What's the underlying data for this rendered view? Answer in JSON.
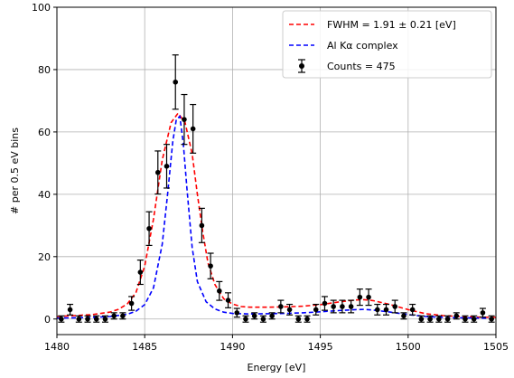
{
  "chart_data": {
    "type": "scatter",
    "xlabel": "Energy [eV]",
    "ylabel": "# per 0.5 eV bins",
    "xlim": [
      1480,
      1505
    ],
    "ylim": [
      -5,
      100
    ],
    "x_ticks": [
      1480,
      1485,
      1490,
      1495,
      1500,
      1505
    ],
    "y_ticks": [
      0,
      20,
      40,
      60,
      80,
      100
    ],
    "grid": true,
    "legend_position": "top-right",
    "legend": [
      {
        "label": "FWHM = 1.91 ± 0.21 [eV]",
        "style": "dashed",
        "color": "#ff0000"
      },
      {
        "label": "Al Kα complex",
        "style": "dashed",
        "color": "#0000ff"
      },
      {
        "label": "Counts = 475",
        "style": "errorbar",
        "color": "#000000"
      }
    ],
    "series": [
      {
        "type": "errorbar",
        "color": "#000000",
        "x": [
          1480.25,
          1480.75,
          1481.25,
          1481.75,
          1482.25,
          1482.75,
          1483.25,
          1483.75,
          1484.25,
          1484.75,
          1485.25,
          1485.75,
          1486.25,
          1486.75,
          1487.25,
          1487.75,
          1488.25,
          1488.75,
          1489.25,
          1489.75,
          1490.25,
          1490.75,
          1491.25,
          1491.75,
          1492.25,
          1492.75,
          1493.25,
          1493.75,
          1494.25,
          1494.75,
          1495.25,
          1495.75,
          1496.25,
          1496.75,
          1497.25,
          1497.75,
          1498.25,
          1498.75,
          1499.25,
          1499.75,
          1500.25,
          1500.75,
          1501.25,
          1501.75,
          1502.25,
          1502.75,
          1503.25,
          1503.75,
          1504.25,
          1504.75
        ],
        "y": [
          0,
          3,
          0,
          0,
          0,
          0,
          1,
          1,
          5,
          15,
          29,
          47,
          49,
          76,
          64,
          61,
          30,
          17,
          9,
          6,
          2,
          0,
          1,
          0,
          1,
          4,
          3,
          0,
          0,
          3,
          5,
          4,
          4,
          4,
          7,
          7,
          3,
          3,
          4,
          1,
          3,
          0,
          0,
          0,
          0,
          1,
          0,
          0,
          2,
          0
        ],
        "yerr": [
          1,
          1.7,
          1,
          1,
          1,
          1,
          1,
          1,
          2.2,
          3.9,
          5.4,
          6.9,
          7,
          8.7,
          8,
          7.8,
          5.5,
          4.1,
          3,
          2.4,
          1.4,
          1,
          1,
          1,
          1,
          2,
          1.7,
          1,
          1,
          1.7,
          2.2,
          2,
          2,
          2,
          2.6,
          2.6,
          1.7,
          1.7,
          2,
          1,
          1.7,
          1,
          1,
          1,
          1,
          1,
          1,
          1,
          1.4,
          1
        ]
      },
      {
        "type": "line",
        "style": "dashed",
        "color": "#ff0000",
        "x": [
          1480,
          1481,
          1482,
          1483,
          1483.5,
          1484,
          1484.5,
          1485,
          1485.5,
          1486,
          1486.5,
          1486.9,
          1487.3,
          1487.7,
          1488,
          1488.3,
          1488.6,
          1489,
          1489.5,
          1490,
          1490.5,
          1491,
          1492,
          1493,
          1494,
          1495,
          1496,
          1497,
          1497.5,
          1498,
          1499,
          1500,
          1501,
          1502,
          1503,
          1504,
          1505
        ],
        "y": [
          0.8,
          1.1,
          1.4,
          2.2,
          3.1,
          4.8,
          8.5,
          17,
          32,
          51,
          63,
          66,
          63,
          53,
          40,
          28,
          18,
          11,
          6.5,
          4.8,
          4,
          3.8,
          3.8,
          3.9,
          4.1,
          4.6,
          5.4,
          6.1,
          6.2,
          5.9,
          4.6,
          3,
          1.7,
          1.1,
          0.8,
          0.6,
          0.5
        ]
      },
      {
        "type": "line",
        "style": "dashed",
        "color": "#0000ff",
        "x": [
          1480,
          1481,
          1482,
          1483,
          1484,
          1484.5,
          1485,
          1485.5,
          1486,
          1486.3,
          1486.6,
          1486.8,
          1487,
          1487.2,
          1487.4,
          1487.7,
          1488,
          1488.5,
          1489,
          1489.5,
          1490,
          1491,
          1492,
          1493,
          1494,
          1495,
          1496,
          1497,
          1497.5,
          1498,
          1499,
          1500,
          1501,
          1502,
          1503,
          1504,
          1505
        ],
        "y": [
          0.3,
          0.4,
          0.5,
          0.8,
          1.5,
          2.5,
          4.6,
          10,
          24,
          40,
          57,
          64,
          65,
          56,
          42,
          23,
          12,
          5.5,
          3.2,
          2.2,
          1.8,
          1.6,
          1.7,
          1.8,
          2,
          2.3,
          2.7,
          3,
          3.1,
          2.9,
          2.2,
          1.4,
          0.8,
          0.5,
          0.4,
          0.3,
          0.2
        ]
      }
    ]
  }
}
